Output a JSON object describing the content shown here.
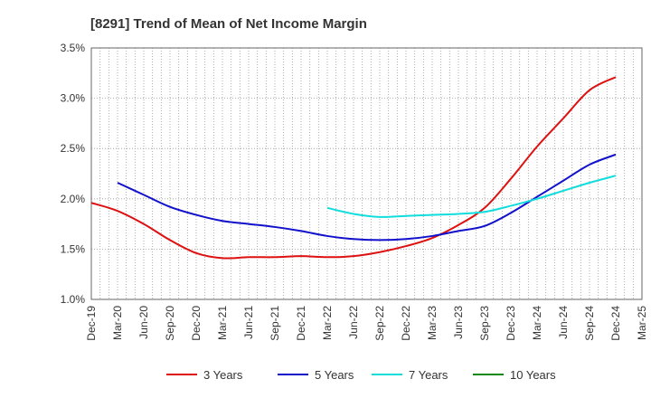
{
  "chart_data": {
    "type": "line",
    "title": "[8291]  Trend of Mean of Net Income Margin",
    "xlabel": "",
    "ylabel": "",
    "ylim": [
      1.0,
      3.5
    ],
    "yticks": [
      "1.0%",
      "1.5%",
      "2.0%",
      "2.5%",
      "3.0%",
      "3.5%"
    ],
    "y_tick_values": [
      1.0,
      1.5,
      2.0,
      2.5,
      3.0,
      3.5
    ],
    "categories": [
      "Dec-19",
      "Mar-20",
      "Jun-20",
      "Sep-20",
      "Dec-20",
      "Mar-21",
      "Jun-21",
      "Sep-21",
      "Dec-21",
      "Mar-22",
      "Jun-22",
      "Sep-22",
      "Dec-22",
      "Mar-23",
      "Jun-23",
      "Sep-23",
      "Dec-23",
      "Mar-24",
      "Jun-24",
      "Sep-24",
      "Dec-24",
      "Mar-25"
    ],
    "grid": true,
    "legend_position": "bottom",
    "series": [
      {
        "name": "3 Years",
        "color": "#dd1111",
        "values": [
          1.96,
          1.88,
          1.75,
          1.59,
          1.46,
          1.41,
          1.42,
          1.42,
          1.43,
          1.42,
          1.43,
          1.47,
          1.53,
          1.61,
          1.74,
          1.91,
          2.2,
          2.52,
          2.8,
          3.08,
          3.21,
          null
        ]
      },
      {
        "name": "5 Years",
        "color": "#1111cc",
        "values": [
          null,
          2.16,
          2.04,
          1.92,
          1.84,
          1.78,
          1.75,
          1.72,
          1.68,
          1.63,
          1.6,
          1.59,
          1.6,
          1.63,
          1.68,
          1.73,
          1.86,
          2.02,
          2.18,
          2.34,
          2.44,
          null
        ]
      },
      {
        "name": "7 Years",
        "color": "#11dddd",
        "values": [
          null,
          null,
          null,
          null,
          null,
          null,
          null,
          null,
          null,
          1.91,
          1.85,
          1.82,
          1.83,
          1.84,
          1.85,
          1.87,
          1.93,
          2.0,
          2.08,
          2.16,
          2.23,
          null
        ]
      },
      {
        "name": "10 Years",
        "color": "#118811",
        "values": [
          null,
          null,
          null,
          null,
          null,
          null,
          null,
          null,
          null,
          null,
          null,
          null,
          null,
          null,
          null,
          null,
          null,
          null,
          null,
          null,
          null,
          null
        ]
      }
    ]
  }
}
